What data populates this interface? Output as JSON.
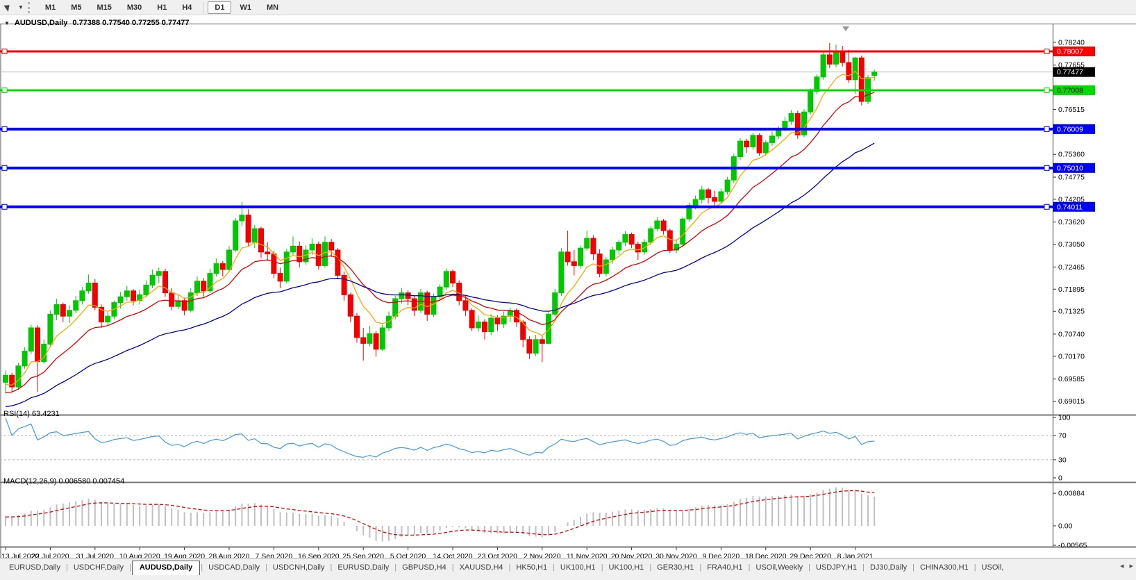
{
  "toolbar": {
    "timeframes": [
      "M1",
      "M5",
      "M15",
      "M30",
      "H1",
      "H4",
      "D1",
      "W1",
      "MN"
    ],
    "active": "D1"
  },
  "icons": {
    "collapse_caret": "▼",
    "dropdown_caret": "▼",
    "shift_marker": "▼",
    "tab_scroll_left": "◂",
    "tab_scroll_right": "▸"
  },
  "chart_header": {
    "symbol": "AUDUSD,Daily",
    "ohlc_text": "0.77388 0.77540 0.77255 0.77477"
  },
  "colors": {
    "bull": "#00C800",
    "bear": "#F20000",
    "axis_text": "#000000",
    "current_price_line": "#B4B4B4",
    "panel_border": "#777777"
  },
  "chart_data": {
    "type": "candlestick",
    "symbol": "AUDUSD",
    "timeframe": "Daily",
    "title_ohlc": {
      "open": "0.77388",
      "high": "0.77540",
      "low": "0.77255",
      "close": "0.77477"
    },
    "y_axis": {
      "ticks": [
        "0.78240",
        "0.77655",
        "0.76515",
        "0.75360",
        "0.74775",
        "0.74205",
        "0.73620",
        "0.73050",
        "0.72465",
        "0.71895",
        "0.71325",
        "0.70740",
        "0.70170",
        "0.69585",
        "0.69015"
      ],
      "range": [
        0.69015,
        0.7824
      ]
    },
    "x_axis": {
      "step": 7,
      "labels": [
        "13 Jul 2020",
        "22 Jul 2020",
        "31 Jul 2020",
        "10 Aug 2020",
        "19 Aug 2020",
        "28 Aug 2020",
        "7 Sep 2020",
        "16 Sep 2020",
        "25 Sep 2020",
        "5 Oct 2020",
        "14 Oct 2020",
        "23 Oct 2020",
        "2 Nov 2020",
        "11 Nov 2020",
        "20 Nov 2020",
        "30 Nov 2020",
        "9 Dec 2020",
        "18 Dec 2020",
        "29 Dec 2020",
        "8 Jan 2021"
      ]
    },
    "candles": [
      [
        0.695,
        0.698,
        0.6921,
        0.6968
      ],
      [
        0.6968,
        0.6975,
        0.6925,
        0.6938
      ],
      [
        0.6938,
        0.7,
        0.693,
        0.6992
      ],
      [
        0.6992,
        0.704,
        0.6985,
        0.703
      ],
      [
        0.703,
        0.7098,
        0.7022,
        0.709
      ],
      [
        0.709,
        0.7097,
        0.6925,
        0.7003
      ],
      [
        0.7003,
        0.706,
        0.6998,
        0.7048
      ],
      [
        0.7048,
        0.7135,
        0.704,
        0.7125
      ],
      [
        0.7125,
        0.7165,
        0.711,
        0.715
      ],
      [
        0.715,
        0.7155,
        0.7105,
        0.712
      ],
      [
        0.712,
        0.7148,
        0.7102,
        0.7135
      ],
      [
        0.7135,
        0.7172,
        0.7128,
        0.716
      ],
      [
        0.716,
        0.7195,
        0.715,
        0.7185
      ],
      [
        0.7185,
        0.7227,
        0.7178,
        0.7205
      ],
      [
        0.7205,
        0.7215,
        0.7135,
        0.7143
      ],
      [
        0.7143,
        0.715,
        0.709,
        0.7105
      ],
      [
        0.7105,
        0.7132,
        0.7095,
        0.712
      ],
      [
        0.712,
        0.716,
        0.7112,
        0.7155
      ],
      [
        0.7155,
        0.7182,
        0.714,
        0.717
      ],
      [
        0.717,
        0.7198,
        0.716,
        0.7185
      ],
      [
        0.7185,
        0.719,
        0.7148,
        0.716
      ],
      [
        0.716,
        0.7188,
        0.715,
        0.7175
      ],
      [
        0.7175,
        0.7212,
        0.7168,
        0.72
      ],
      [
        0.72,
        0.724,
        0.7192,
        0.7225
      ],
      [
        0.7225,
        0.7245,
        0.7205,
        0.7235
      ],
      [
        0.7235,
        0.7242,
        0.717,
        0.718
      ],
      [
        0.718,
        0.7192,
        0.7135,
        0.7145
      ],
      [
        0.7145,
        0.7175,
        0.7138,
        0.716
      ],
      [
        0.716,
        0.7168,
        0.7122,
        0.7135
      ],
      [
        0.7135,
        0.7192,
        0.713,
        0.718
      ],
      [
        0.718,
        0.7222,
        0.7172,
        0.721
      ],
      [
        0.721,
        0.7218,
        0.717,
        0.7185
      ],
      [
        0.7185,
        0.7242,
        0.718,
        0.723
      ],
      [
        0.723,
        0.7268,
        0.7222,
        0.7255
      ],
      [
        0.7255,
        0.7262,
        0.7222,
        0.724
      ],
      [
        0.724,
        0.73,
        0.7235,
        0.729
      ],
      [
        0.729,
        0.7372,
        0.7285,
        0.7365
      ],
      [
        0.7365,
        0.7414,
        0.7352,
        0.738
      ],
      [
        0.738,
        0.7395,
        0.73,
        0.731
      ],
      [
        0.731,
        0.7355,
        0.7295,
        0.7345
      ],
      [
        0.7345,
        0.735,
        0.727,
        0.7285
      ],
      [
        0.7285,
        0.731,
        0.7262,
        0.728
      ],
      [
        0.728,
        0.7288,
        0.7218,
        0.723
      ],
      [
        0.723,
        0.7245,
        0.7192,
        0.721
      ],
      [
        0.721,
        0.7292,
        0.7205,
        0.7285
      ],
      [
        0.7285,
        0.7325,
        0.7275,
        0.73
      ],
      [
        0.73,
        0.7312,
        0.7245,
        0.726
      ],
      [
        0.726,
        0.7302,
        0.7252,
        0.729
      ],
      [
        0.729,
        0.732,
        0.7278,
        0.7305
      ],
      [
        0.7305,
        0.7312,
        0.724,
        0.725
      ],
      [
        0.725,
        0.7325,
        0.7245,
        0.731
      ],
      [
        0.731,
        0.7318,
        0.7272,
        0.729
      ],
      [
        0.729,
        0.7295,
        0.7215,
        0.7225
      ],
      [
        0.7225,
        0.7235,
        0.716,
        0.7175
      ],
      [
        0.7175,
        0.718,
        0.7105,
        0.712
      ],
      [
        0.712,
        0.7128,
        0.7052,
        0.7065
      ],
      [
        0.7065,
        0.709,
        0.7006,
        0.705
      ],
      [
        0.705,
        0.7095,
        0.7042,
        0.7075
      ],
      [
        0.7075,
        0.7082,
        0.7016,
        0.7035
      ],
      [
        0.7035,
        0.7098,
        0.703,
        0.709
      ],
      [
        0.709,
        0.7132,
        0.7082,
        0.712
      ],
      [
        0.712,
        0.7172,
        0.7112,
        0.7165
      ],
      [
        0.7165,
        0.7192,
        0.7152,
        0.718
      ],
      [
        0.718,
        0.7186,
        0.7148,
        0.7165
      ],
      [
        0.7165,
        0.7172,
        0.712,
        0.7135
      ],
      [
        0.7135,
        0.719,
        0.7128,
        0.718
      ],
      [
        0.718,
        0.7185,
        0.7108,
        0.7125
      ],
      [
        0.7125,
        0.7178,
        0.7118,
        0.717
      ],
      [
        0.717,
        0.7202,
        0.7162,
        0.7195
      ],
      [
        0.7195,
        0.7243,
        0.7188,
        0.7235
      ],
      [
        0.7235,
        0.724,
        0.7195,
        0.7205
      ],
      [
        0.7205,
        0.7212,
        0.7148,
        0.716
      ],
      [
        0.716,
        0.7172,
        0.712,
        0.7135
      ],
      [
        0.7135,
        0.714,
        0.7082,
        0.709
      ],
      [
        0.709,
        0.7122,
        0.708,
        0.7105
      ],
      [
        0.7105,
        0.7112,
        0.706,
        0.708
      ],
      [
        0.708,
        0.7125,
        0.7072,
        0.7115
      ],
      [
        0.7115,
        0.7122,
        0.7082,
        0.71
      ],
      [
        0.71,
        0.7132,
        0.709,
        0.712
      ],
      [
        0.712,
        0.7142,
        0.7105,
        0.7135
      ],
      [
        0.7135,
        0.714,
        0.7092,
        0.7105
      ],
      [
        0.7105,
        0.711,
        0.704,
        0.706
      ],
      [
        0.706,
        0.7068,
        0.701,
        0.7025
      ],
      [
        0.7025,
        0.7072,
        0.7018,
        0.706
      ],
      [
        0.706,
        0.707,
        0.7002,
        0.705
      ],
      [
        0.705,
        0.713,
        0.7048,
        0.7125
      ],
      [
        0.7125,
        0.719,
        0.7118,
        0.718
      ],
      [
        0.718,
        0.7295,
        0.7172,
        0.7285
      ],
      [
        0.7285,
        0.734,
        0.725,
        0.726
      ],
      [
        0.726,
        0.729,
        0.7225,
        0.725
      ],
      [
        0.725,
        0.7302,
        0.7242,
        0.7295
      ],
      [
        0.7295,
        0.734,
        0.7288,
        0.732
      ],
      [
        0.732,
        0.7328,
        0.7265,
        0.728
      ],
      [
        0.728,
        0.7292,
        0.722,
        0.723
      ],
      [
        0.723,
        0.7272,
        0.7222,
        0.7265
      ],
      [
        0.7265,
        0.7298,
        0.7255,
        0.729
      ],
      [
        0.729,
        0.7315,
        0.7278,
        0.731
      ],
      [
        0.731,
        0.7339,
        0.73,
        0.733
      ],
      [
        0.733,
        0.7335,
        0.7295,
        0.7305
      ],
      [
        0.7305,
        0.7312,
        0.7265,
        0.7285
      ],
      [
        0.7285,
        0.7318,
        0.7278,
        0.731
      ],
      [
        0.731,
        0.7352,
        0.7302,
        0.7345
      ],
      [
        0.7345,
        0.7374,
        0.7338,
        0.7365
      ],
      [
        0.7365,
        0.737,
        0.733,
        0.734
      ],
      [
        0.734,
        0.7345,
        0.7282,
        0.729
      ],
      [
        0.729,
        0.7318,
        0.7282,
        0.7305
      ],
      [
        0.7305,
        0.7375,
        0.7298,
        0.737
      ],
      [
        0.737,
        0.7412,
        0.7362,
        0.7405
      ],
      [
        0.7405,
        0.743,
        0.7395,
        0.742
      ],
      [
        0.742,
        0.7455,
        0.741,
        0.7445
      ],
      [
        0.7445,
        0.745,
        0.741,
        0.7425
      ],
      [
        0.7425,
        0.7442,
        0.7402,
        0.7415
      ],
      [
        0.7415,
        0.7448,
        0.7408,
        0.744
      ],
      [
        0.744,
        0.7478,
        0.7432,
        0.747
      ],
      [
        0.747,
        0.7538,
        0.7462,
        0.753
      ],
      [
        0.753,
        0.7578,
        0.7522,
        0.757
      ],
      [
        0.757,
        0.7576,
        0.754,
        0.7555
      ],
      [
        0.7555,
        0.7592,
        0.7548,
        0.7585
      ],
      [
        0.7585,
        0.759,
        0.7532,
        0.754
      ],
      [
        0.754,
        0.7572,
        0.7532,
        0.7566
      ],
      [
        0.7566,
        0.7595,
        0.7558,
        0.7583
      ],
      [
        0.7583,
        0.7608,
        0.7575,
        0.7601
      ],
      [
        0.7601,
        0.7632,
        0.7595,
        0.7621
      ],
      [
        0.7621,
        0.765,
        0.7612,
        0.7641
      ],
      [
        0.7641,
        0.7648,
        0.7576,
        0.7586
      ],
      [
        0.7586,
        0.7652,
        0.758,
        0.7645
      ],
      [
        0.7645,
        0.7705,
        0.7638,
        0.7698
      ],
      [
        0.7698,
        0.7742,
        0.769,
        0.7735
      ],
      [
        0.7735,
        0.78,
        0.7728,
        0.7792
      ],
      [
        0.7792,
        0.7822,
        0.7758,
        0.7768
      ],
      [
        0.7768,
        0.7818,
        0.776,
        0.78
      ],
      [
        0.78,
        0.7815,
        0.7762,
        0.7772
      ],
      [
        0.7772,
        0.7805,
        0.772,
        0.7728
      ],
      [
        0.7728,
        0.7786,
        0.7692,
        0.7784
      ],
      [
        0.7784,
        0.779,
        0.7662,
        0.7672
      ],
      [
        0.7672,
        0.774,
        0.7665,
        0.7733
      ],
      [
        0.77388,
        0.7754,
        0.77255,
        0.77477
      ]
    ],
    "moving_averages": [
      {
        "name": "fast",
        "method": "ema",
        "period": 7,
        "color": "#FFA500"
      },
      {
        "name": "medium",
        "method": "ema",
        "period": 16,
        "color": "#DD0000"
      },
      {
        "name": "slow",
        "method": "ema",
        "period": 40,
        "color": "#0000AA"
      }
    ],
    "object_lines": [
      {
        "label": "0.78007",
        "price": 0.78007,
        "color": "#FF0000",
        "width": 3,
        "text_color": "#FFFFFF"
      },
      {
        "label": "0.77008",
        "price": 0.77008,
        "color": "#00DC00",
        "width": 3,
        "text_color": "#000000"
      },
      {
        "label": "0.76009",
        "price": 0.76009,
        "color": "#0000FF",
        "width": 4,
        "text_color": "#FFFFFF"
      },
      {
        "label": "0.75010",
        "price": 0.7501,
        "color": "#0000FF",
        "width": 4,
        "text_color": "#FFFFFF"
      },
      {
        "label": "0.74011",
        "price": 0.74011,
        "color": "#0000FF",
        "width": 4,
        "text_color": "#FFFFFF"
      }
    ],
    "current_price": {
      "label": "0.77477",
      "price": 0.77477
    },
    "indicators": {
      "rsi": {
        "label": "RSI(14) 63.4231",
        "period": 14,
        "value": "63.4231",
        "color": "#3D9BE9",
        "axis_labels": [
          {
            "label": "100",
            "value": 100
          },
          {
            "label": "70",
            "value": 70
          },
          {
            "label": "30",
            "value": 30
          },
          {
            "label": "0",
            "value": 0
          }
        ],
        "level_lines": [
          70,
          30
        ]
      },
      "macd": {
        "label": "MACD(12,26,9) 0.006580 0.007454",
        "fast": 12,
        "slow": 26,
        "signal": 9,
        "main_value": "0.006580",
        "signal_value": "0.007454",
        "histogram_color": "#C0C0C0",
        "signal_color": "#E00000",
        "axis_labels": [
          {
            "label": "0.00884",
            "value": 0.00884
          },
          {
            "label": "0.00",
            "value": 0
          },
          {
            "label": "-0.00565",
            "value": -0.00565
          }
        ]
      }
    }
  },
  "tabs": {
    "items": [
      "EURUSD,Daily",
      "USDCHF,Daily",
      "AUDUSD,Daily",
      "USDCAD,Daily",
      "USDCNH,Daily",
      "EURUSD,Daily",
      "GBPUSD,H4",
      "XAUUSD,H4",
      "HK50,H1",
      "UK100,H1",
      "UK100,H1",
      "GER30,H1",
      "FRA40,H1",
      "USOil,Weekly",
      "USDJPY,H1",
      "DJ30,Daily",
      "CHINA300,H1",
      "USOil,"
    ],
    "active_index": 2
  }
}
